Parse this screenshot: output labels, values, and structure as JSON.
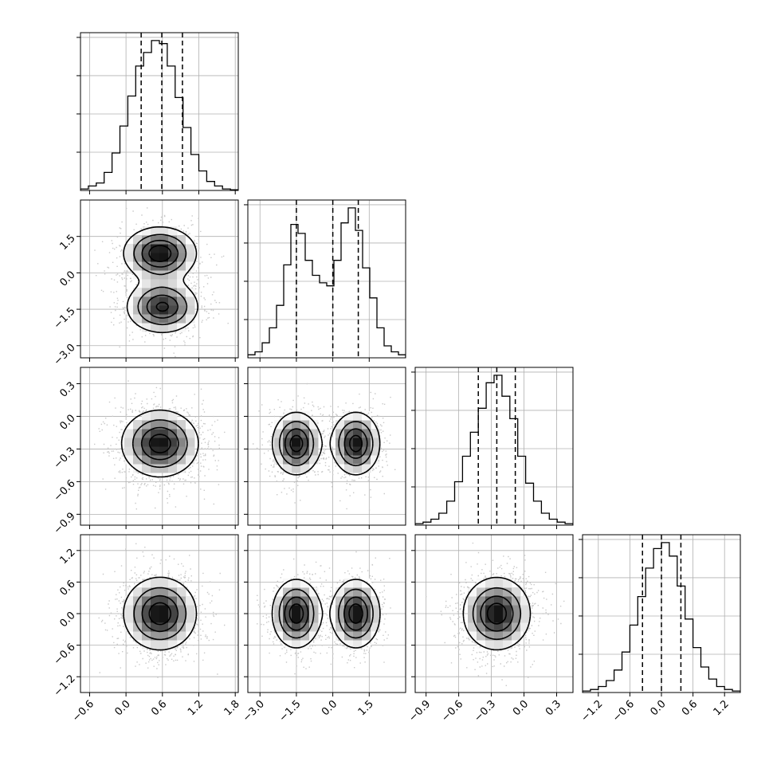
{
  "chart_data": {
    "type": "corner",
    "parameters": 4,
    "axes": [
      {
        "range": [
          -0.75,
          1.85
        ],
        "ticks": [
          -0.6,
          0.0,
          0.6,
          1.2,
          1.8
        ],
        "tick_labels": [
          "−0.6",
          "0.0",
          "0.6",
          "1.2",
          "1.8"
        ]
      },
      {
        "range": [
          -3.5,
          3.0
        ],
        "ticks": [
          -3.0,
          -1.5,
          0.0,
          1.5
        ],
        "tick_labels": [
          "−3.0",
          "−1.5",
          "0.0",
          "1.5"
        ]
      },
      {
        "range": [
          -1.0,
          0.45
        ],
        "ticks": [
          -0.9,
          -0.6,
          -0.3,
          0.0,
          0.3
        ],
        "tick_labels": [
          "−0.9",
          "−0.6",
          "−0.3",
          "0.0",
          "0.3"
        ]
      },
      {
        "range": [
          -1.5,
          1.5
        ],
        "ticks": [
          -1.2,
          -0.6,
          0.0,
          0.6,
          1.2
        ],
        "tick_labels": [
          "−1.2",
          "−0.6",
          "0.0",
          "0.6",
          "1.2"
        ]
      }
    ],
    "marginals": [
      {
        "quantiles": [
          0.25,
          0.59,
          0.93
        ],
        "histogram": [
          0.01,
          0.03,
          0.05,
          0.12,
          0.25,
          0.43,
          0.63,
          0.83,
          0.92,
          1.0,
          0.98,
          0.83,
          0.62,
          0.42,
          0.24,
          0.13,
          0.06,
          0.03,
          0.01,
          0.005
        ]
      },
      {
        "quantiles": [
          -1.5,
          0.0,
          1.05
        ],
        "histogram": [
          0.02,
          0.04,
          0.1,
          0.2,
          0.35,
          0.62,
          0.89,
          0.83,
          0.65,
          0.55,
          0.5,
          0.48,
          0.65,
          0.9,
          1.0,
          0.85,
          0.6,
          0.4,
          0.2,
          0.08,
          0.04,
          0.02
        ]
      },
      {
        "quantiles": [
          -0.42,
          -0.25,
          -0.08
        ],
        "histogram": [
          0.01,
          0.02,
          0.04,
          0.08,
          0.16,
          0.29,
          0.46,
          0.62,
          0.78,
          0.95,
          1.0,
          0.86,
          0.71,
          0.46,
          0.28,
          0.16,
          0.08,
          0.04,
          0.02,
          0.01
        ]
      },
      {
        "quantiles": [
          -0.36,
          0.0,
          0.37
        ],
        "histogram": [
          0.01,
          0.02,
          0.04,
          0.08,
          0.15,
          0.27,
          0.45,
          0.64,
          0.83,
          0.96,
          1.0,
          0.91,
          0.71,
          0.49,
          0.3,
          0.17,
          0.09,
          0.04,
          0.02,
          0.01
        ]
      }
    ],
    "joint": {
      "1-0": {
        "modes": [
          {
            "x": 0.56,
            "y": 0.8,
            "w": 1
          },
          {
            "x": 0.6,
            "y": -1.4,
            "w": 0.9
          }
        ],
        "sx": 0.33,
        "sy": 0.6
      },
      "2-0": {
        "modes": [
          {
            "x": 0.56,
            "y": -0.25,
            "w": 1
          }
        ],
        "sx": 0.35,
        "sy": 0.17
      },
      "2-1": {
        "modes": [
          {
            "x": -1.5,
            "y": -0.25,
            "w": 1
          },
          {
            "x": 0.95,
            "y": -0.25,
            "w": 1
          }
        ],
        "sx": 0.55,
        "sy": 0.16
      },
      "3-0": {
        "modes": [
          {
            "x": 0.56,
            "y": 0.0,
            "w": 1
          }
        ],
        "sx": 0.33,
        "sy": 0.38
      },
      "3-1": {
        "modes": [
          {
            "x": -1.5,
            "y": 0.0,
            "w": 1
          },
          {
            "x": 0.95,
            "y": 0.0,
            "w": 1
          }
        ],
        "sx": 0.55,
        "sy": 0.36
      },
      "3-2": {
        "modes": [
          {
            "x": -0.25,
            "y": 0.0,
            "w": 1
          }
        ],
        "sx": 0.17,
        "sy": 0.38
      }
    }
  }
}
